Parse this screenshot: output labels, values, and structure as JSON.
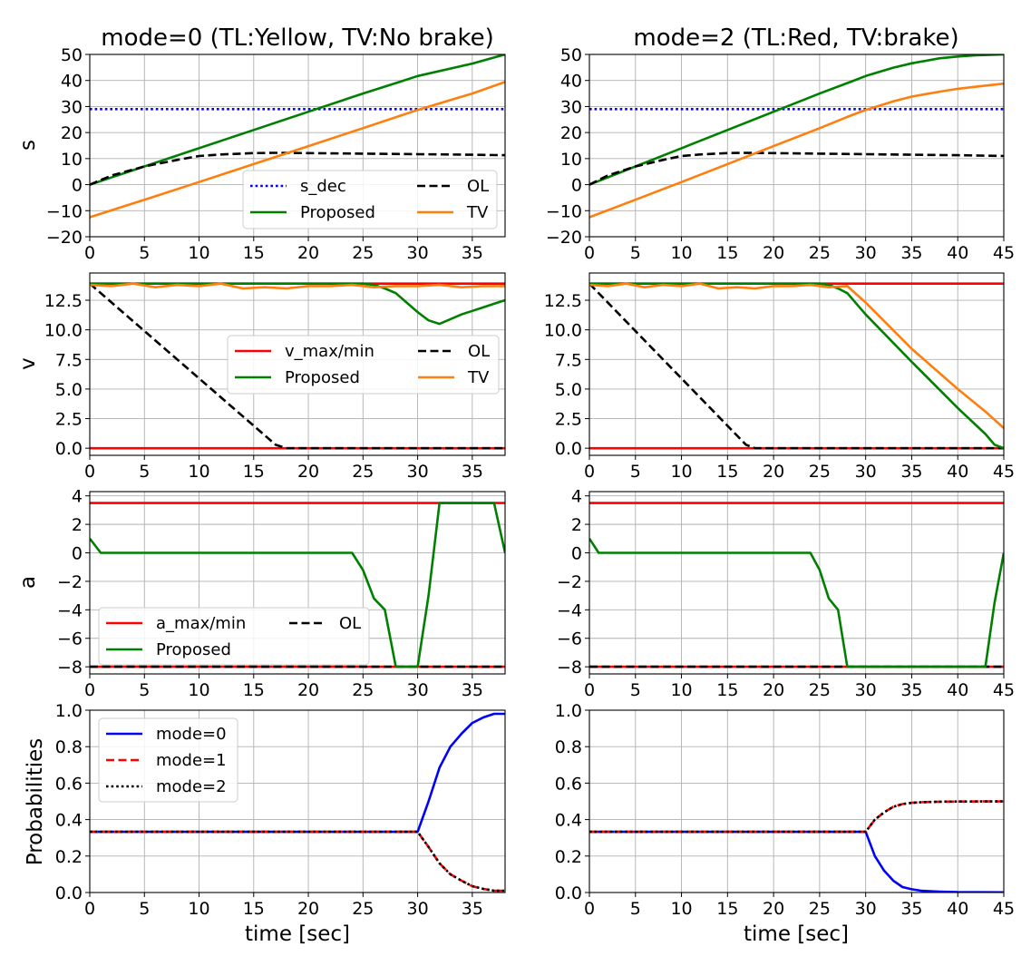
{
  "chart_data": [
    {
      "id": "s_m0",
      "type": "line",
      "title": "mode=0 (TL:Yellow, TV:No brake)",
      "xlabel": "",
      "ylabel": "s",
      "xlim": [
        0,
        38
      ],
      "ylim": [
        -20,
        50
      ],
      "xticks": [
        0,
        5,
        10,
        15,
        20,
        25,
        30,
        35
      ],
      "yticks": [
        -20,
        -10,
        0,
        10,
        20,
        30,
        40,
        50
      ],
      "legend": {
        "position": "lower-center",
        "ncol": 2,
        "items": [
          "s_dec",
          "Proposed",
          "OL",
          "TV"
        ]
      },
      "series": [
        {
          "name": "s_dec",
          "color": "#0000ff",
          "dash": "dotted",
          "x": [
            0,
            38
          ],
          "y": [
            29,
            29
          ]
        },
        {
          "name": "Proposed",
          "color": "#008000",
          "dash": "solid",
          "x": [
            0,
            5,
            10,
            15,
            20,
            25,
            28,
            30,
            35,
            38
          ],
          "y": [
            0,
            7,
            14,
            21,
            28,
            35,
            39,
            41.7,
            46.5,
            50
          ]
        },
        {
          "name": "OL",
          "color": "#000000",
          "dash": "dashed",
          "x": [
            0,
            2,
            5,
            8,
            10,
            12,
            15,
            17,
            20,
            25,
            30,
            35,
            38
          ],
          "y": [
            0,
            3.5,
            7,
            9.5,
            11,
            11.6,
            12.1,
            12.2,
            12.1,
            11.9,
            11.7,
            11.5,
            11.3
          ]
        },
        {
          "name": "TV",
          "color": "#ff7f0e",
          "dash": "solid",
          "x": [
            0,
            5,
            10,
            15,
            20,
            25,
            30,
            35,
            38
          ],
          "y": [
            -12.5,
            -5.8,
            1,
            7.9,
            14.8,
            21.7,
            28.7,
            35,
            39.4
          ]
        }
      ]
    },
    {
      "id": "s_m2",
      "type": "line",
      "title": "mode=2 (TL:Red, TV:brake)",
      "xlabel": "",
      "ylabel": "",
      "xlim": [
        0,
        45
      ],
      "ylim": [
        -20,
        50
      ],
      "xticks": [
        0,
        5,
        10,
        15,
        20,
        25,
        30,
        35,
        40,
        45
      ],
      "yticks": [
        -20,
        -10,
        0,
        10,
        20,
        30,
        40,
        50
      ],
      "legend": null,
      "series": [
        {
          "name": "s_dec",
          "color": "#0000ff",
          "dash": "dotted",
          "x": [
            0,
            45
          ],
          "y": [
            29,
            29
          ]
        },
        {
          "name": "Proposed",
          "color": "#008000",
          "dash": "solid",
          "x": [
            0,
            5,
            10,
            15,
            20,
            25,
            28,
            30,
            33,
            35,
            38,
            40,
            42,
            44,
            45
          ],
          "y": [
            0,
            7,
            14,
            21,
            28,
            35,
            39,
            41.7,
            44.9,
            46.6,
            48.5,
            49.2,
            49.7,
            49.9,
            50
          ]
        },
        {
          "name": "OL",
          "color": "#000000",
          "dash": "dashed",
          "x": [
            0,
            2,
            5,
            8,
            10,
            12,
            15,
            17,
            20,
            25,
            30,
            35,
            40,
            45
          ],
          "y": [
            0,
            3.5,
            7,
            9.5,
            11,
            11.6,
            12.1,
            12.2,
            12.1,
            11.9,
            11.7,
            11.5,
            11.3,
            11
          ]
        },
        {
          "name": "TV",
          "color": "#ff7f0e",
          "dash": "solid",
          "x": [
            0,
            5,
            10,
            15,
            20,
            25,
            28,
            30,
            33,
            35,
            38,
            40,
            42,
            45
          ],
          "y": [
            -12.5,
            -5.8,
            1,
            7.9,
            14.8,
            21.7,
            26,
            28.7,
            32,
            33.8,
            35.7,
            36.8,
            37.6,
            38.8
          ]
        }
      ]
    },
    {
      "id": "v_m0",
      "type": "line",
      "title": "",
      "xlabel": "",
      "ylabel": "v",
      "xlim": [
        0,
        38
      ],
      "ylim": [
        -0.6,
        14.8
      ],
      "xticks": [
        0,
        5,
        10,
        15,
        20,
        25,
        30,
        35
      ],
      "yticks": [
        0.0,
        2.5,
        5.0,
        7.5,
        10.0,
        12.5
      ],
      "ytick_labels": [
        "0.0",
        "2.5",
        "5.0",
        "7.5",
        "10.0",
        "12.5"
      ],
      "legend": {
        "position": "center-right",
        "ncol": 2,
        "items": [
          "v_max/min",
          "Proposed",
          "OL",
          "TV"
        ]
      },
      "series": [
        {
          "name": "v_max",
          "color": "#ff0000",
          "dash": "solid",
          "x": [
            0,
            38
          ],
          "y": [
            13.9,
            13.9
          ]
        },
        {
          "name": "v_min",
          "color": "#ff0000",
          "dash": "solid",
          "x": [
            0,
            38
          ],
          "y": [
            0,
            0
          ]
        },
        {
          "name": "OL",
          "color": "#000000",
          "dash": "dashed",
          "x": [
            0,
            17,
            18,
            38
          ],
          "y": [
            13.9,
            0.3,
            0,
            0
          ]
        },
        {
          "name": "Proposed",
          "color": "#008000",
          "dash": "solid",
          "x": [
            0,
            25,
            26,
            27,
            28,
            29,
            30,
            31,
            32,
            33,
            34,
            35,
            36,
            37,
            38
          ],
          "y": [
            13.9,
            13.9,
            13.8,
            13.5,
            13.1,
            12.3,
            11.5,
            10.8,
            10.5,
            10.9,
            11.3,
            11.6,
            11.9,
            12.2,
            12.5
          ]
        },
        {
          "name": "TV",
          "color": "#ff7f0e",
          "dash": "solid",
          "x": [
            0,
            2,
            4,
            6,
            8,
            10,
            12,
            14,
            16,
            18,
            20,
            22,
            24,
            26,
            28,
            30,
            32,
            34,
            36,
            38
          ],
          "y": [
            13.8,
            13.7,
            13.9,
            13.6,
            13.8,
            13.7,
            13.9,
            13.5,
            13.6,
            13.5,
            13.7,
            13.7,
            13.8,
            13.6,
            13.7,
            13.7,
            13.8,
            13.6,
            13.7,
            13.7
          ]
        }
      ]
    },
    {
      "id": "v_m2",
      "type": "line",
      "title": "",
      "xlabel": "",
      "ylabel": "",
      "xlim": [
        0,
        45
      ],
      "ylim": [
        -0.6,
        14.8
      ],
      "xticks": [
        0,
        5,
        10,
        15,
        20,
        25,
        30,
        35,
        40,
        45
      ],
      "yticks": [
        0.0,
        2.5,
        5.0,
        7.5,
        10.0,
        12.5
      ],
      "ytick_labels": [
        "0.0",
        "2.5",
        "5.0",
        "7.5",
        "10.0",
        "12.5"
      ],
      "legend": null,
      "series": [
        {
          "name": "v_max",
          "color": "#ff0000",
          "dash": "solid",
          "x": [
            0,
            45
          ],
          "y": [
            13.9,
            13.9
          ]
        },
        {
          "name": "v_min",
          "color": "#ff0000",
          "dash": "solid",
          "x": [
            0,
            45
          ],
          "y": [
            0,
            0
          ]
        },
        {
          "name": "OL",
          "color": "#000000",
          "dash": "dashed",
          "x": [
            0,
            17,
            18,
            45
          ],
          "y": [
            13.9,
            0.3,
            0,
            0
          ]
        },
        {
          "name": "Proposed",
          "color": "#008000",
          "dash": "solid",
          "x": [
            0,
            25,
            26,
            27,
            28,
            30,
            35,
            40,
            43,
            44,
            45
          ],
          "y": [
            13.9,
            13.9,
            13.8,
            13.5,
            13.1,
            11.3,
            7.3,
            3.4,
            1.2,
            0.3,
            0
          ]
        },
        {
          "name": "TV",
          "color": "#ff7f0e",
          "dash": "solid",
          "x": [
            0,
            2,
            4,
            6,
            8,
            10,
            12,
            14,
            16,
            18,
            20,
            22,
            24,
            26,
            28,
            30,
            35,
            40,
            43,
            45
          ],
          "y": [
            13.8,
            13.7,
            13.9,
            13.6,
            13.8,
            13.7,
            13.9,
            13.5,
            13.6,
            13.5,
            13.7,
            13.7,
            13.8,
            13.6,
            13.7,
            12.3,
            8.4,
            5,
            3.1,
            1.7
          ]
        }
      ]
    },
    {
      "id": "a_m0",
      "type": "line",
      "title": "",
      "xlabel": "",
      "ylabel": "a",
      "xlim": [
        0,
        38
      ],
      "ylim": [
        -8.5,
        4.3
      ],
      "xticks": [
        0,
        5,
        10,
        15,
        20,
        25,
        30,
        35
      ],
      "yticks": [
        -8,
        -6,
        -4,
        -2,
        0,
        2,
        4
      ],
      "legend": {
        "position": "lower-left",
        "ncol": 2,
        "items": [
          "a_max/min",
          "Proposed",
          "OL"
        ]
      },
      "series": [
        {
          "name": "a_max",
          "color": "#ff0000",
          "dash": "solid",
          "x": [
            0,
            38
          ],
          "y": [
            3.5,
            3.5
          ]
        },
        {
          "name": "a_min",
          "color": "#ff0000",
          "dash": "solid",
          "x": [
            0,
            38
          ],
          "y": [
            -8,
            -8
          ]
        },
        {
          "name": "OL",
          "color": "#000000",
          "dash": "dashed",
          "x": [
            0,
            38
          ],
          "y": [
            -8,
            -8
          ]
        },
        {
          "name": "Proposed",
          "color": "#008000",
          "dash": "solid",
          "x": [
            0,
            1,
            24,
            25,
            26,
            27,
            28,
            30,
            31,
            32,
            37,
            38
          ],
          "y": [
            1,
            0,
            0,
            -1.2,
            -3.2,
            -4,
            -8,
            -8,
            -3,
            3.5,
            3.5,
            0
          ]
        }
      ]
    },
    {
      "id": "a_m2",
      "type": "line",
      "title": "",
      "xlabel": "",
      "ylabel": "",
      "xlim": [
        0,
        45
      ],
      "ylim": [
        -8.5,
        4.3
      ],
      "xticks": [
        0,
        5,
        10,
        15,
        20,
        25,
        30,
        35,
        40,
        45
      ],
      "yticks": [
        -8,
        -6,
        -4,
        -2,
        0,
        2,
        4
      ],
      "legend": null,
      "series": [
        {
          "name": "a_max",
          "color": "#ff0000",
          "dash": "solid",
          "x": [
            0,
            45
          ],
          "y": [
            3.5,
            3.5
          ]
        },
        {
          "name": "a_min",
          "color": "#ff0000",
          "dash": "solid",
          "x": [
            0,
            45
          ],
          "y": [
            -8,
            -8
          ]
        },
        {
          "name": "OL",
          "color": "#000000",
          "dash": "dashed",
          "x": [
            0,
            45
          ],
          "y": [
            -8,
            -8
          ]
        },
        {
          "name": "Proposed",
          "color": "#008000",
          "dash": "solid",
          "x": [
            0,
            1,
            24,
            25,
            26,
            27,
            28,
            43,
            44,
            45
          ],
          "y": [
            1,
            0,
            0,
            -1.2,
            -3.2,
            -4,
            -8,
            -8,
            -3.5,
            0
          ]
        }
      ]
    },
    {
      "id": "p_m0",
      "type": "line",
      "title": "",
      "xlabel": "time [sec]",
      "ylabel": "Probabilities",
      "xlim": [
        0,
        38
      ],
      "ylim": [
        0,
        1
      ],
      "xticks": [
        0,
        5,
        10,
        15,
        20,
        25,
        30,
        35
      ],
      "yticks": [
        0.0,
        0.2,
        0.4,
        0.6,
        0.8,
        1.0
      ],
      "ytick_labels": [
        "0.0",
        "0.2",
        "0.4",
        "0.6",
        "0.8",
        "1.0"
      ],
      "legend": {
        "position": "upper-left",
        "ncol": 1,
        "items": [
          "mode=0",
          "mode=1",
          "mode=2"
        ]
      },
      "series": [
        {
          "name": "mode=0",
          "color": "#0000ff",
          "dash": "solid",
          "x": [
            0,
            30,
            31,
            32,
            33,
            34,
            35,
            36,
            37,
            38
          ],
          "y": [
            0.333,
            0.333,
            0.5,
            0.685,
            0.8,
            0.87,
            0.93,
            0.96,
            0.98,
            0.98
          ]
        },
        {
          "name": "mode=1",
          "color": "#ff0000",
          "dash": "dashed",
          "x": [
            0,
            30,
            31,
            32,
            33,
            34,
            35,
            36,
            37,
            38
          ],
          "y": [
            0.333,
            0.333,
            0.25,
            0.16,
            0.1,
            0.065,
            0.035,
            0.02,
            0.01,
            0.01
          ]
        },
        {
          "name": "mode=2",
          "color": "#000000",
          "dash": "dotted",
          "x": [
            0,
            30,
            31,
            32,
            33,
            34,
            35,
            36,
            37,
            38
          ],
          "y": [
            0.333,
            0.333,
            0.25,
            0.16,
            0.1,
            0.065,
            0.035,
            0.02,
            0.01,
            0.01
          ]
        }
      ]
    },
    {
      "id": "p_m2",
      "type": "line",
      "title": "",
      "xlabel": "time [sec]",
      "ylabel": "",
      "xlim": [
        0,
        45
      ],
      "ylim": [
        0,
        1
      ],
      "xticks": [
        0,
        5,
        10,
        15,
        20,
        25,
        30,
        35,
        40,
        45
      ],
      "yticks": [
        0.0,
        0.2,
        0.4,
        0.6,
        0.8,
        1.0
      ],
      "ytick_labels": [
        "0.0",
        "0.2",
        "0.4",
        "0.6",
        "0.8",
        "1.0"
      ],
      "legend": null,
      "series": [
        {
          "name": "mode=0",
          "color": "#0000ff",
          "dash": "solid",
          "x": [
            0,
            30,
            31,
            32,
            33,
            34,
            35,
            36,
            38,
            40,
            45
          ],
          "y": [
            0.333,
            0.333,
            0.2,
            0.12,
            0.065,
            0.03,
            0.018,
            0.01,
            0.005,
            0.002,
            0.001
          ]
        },
        {
          "name": "mode=1",
          "color": "#ff0000",
          "dash": "dashed",
          "x": [
            0,
            30,
            31,
            32,
            33,
            34,
            35,
            36,
            38,
            40,
            45
          ],
          "y": [
            0.333,
            0.333,
            0.4,
            0.44,
            0.47,
            0.485,
            0.492,
            0.495,
            0.498,
            0.499,
            0.5
          ]
        },
        {
          "name": "mode=2",
          "color": "#000000",
          "dash": "dotted",
          "x": [
            0,
            30,
            31,
            32,
            33,
            34,
            35,
            36,
            38,
            40,
            45
          ],
          "y": [
            0.333,
            0.333,
            0.4,
            0.44,
            0.47,
            0.485,
            0.492,
            0.495,
            0.498,
            0.499,
            0.5
          ]
        }
      ]
    }
  ]
}
